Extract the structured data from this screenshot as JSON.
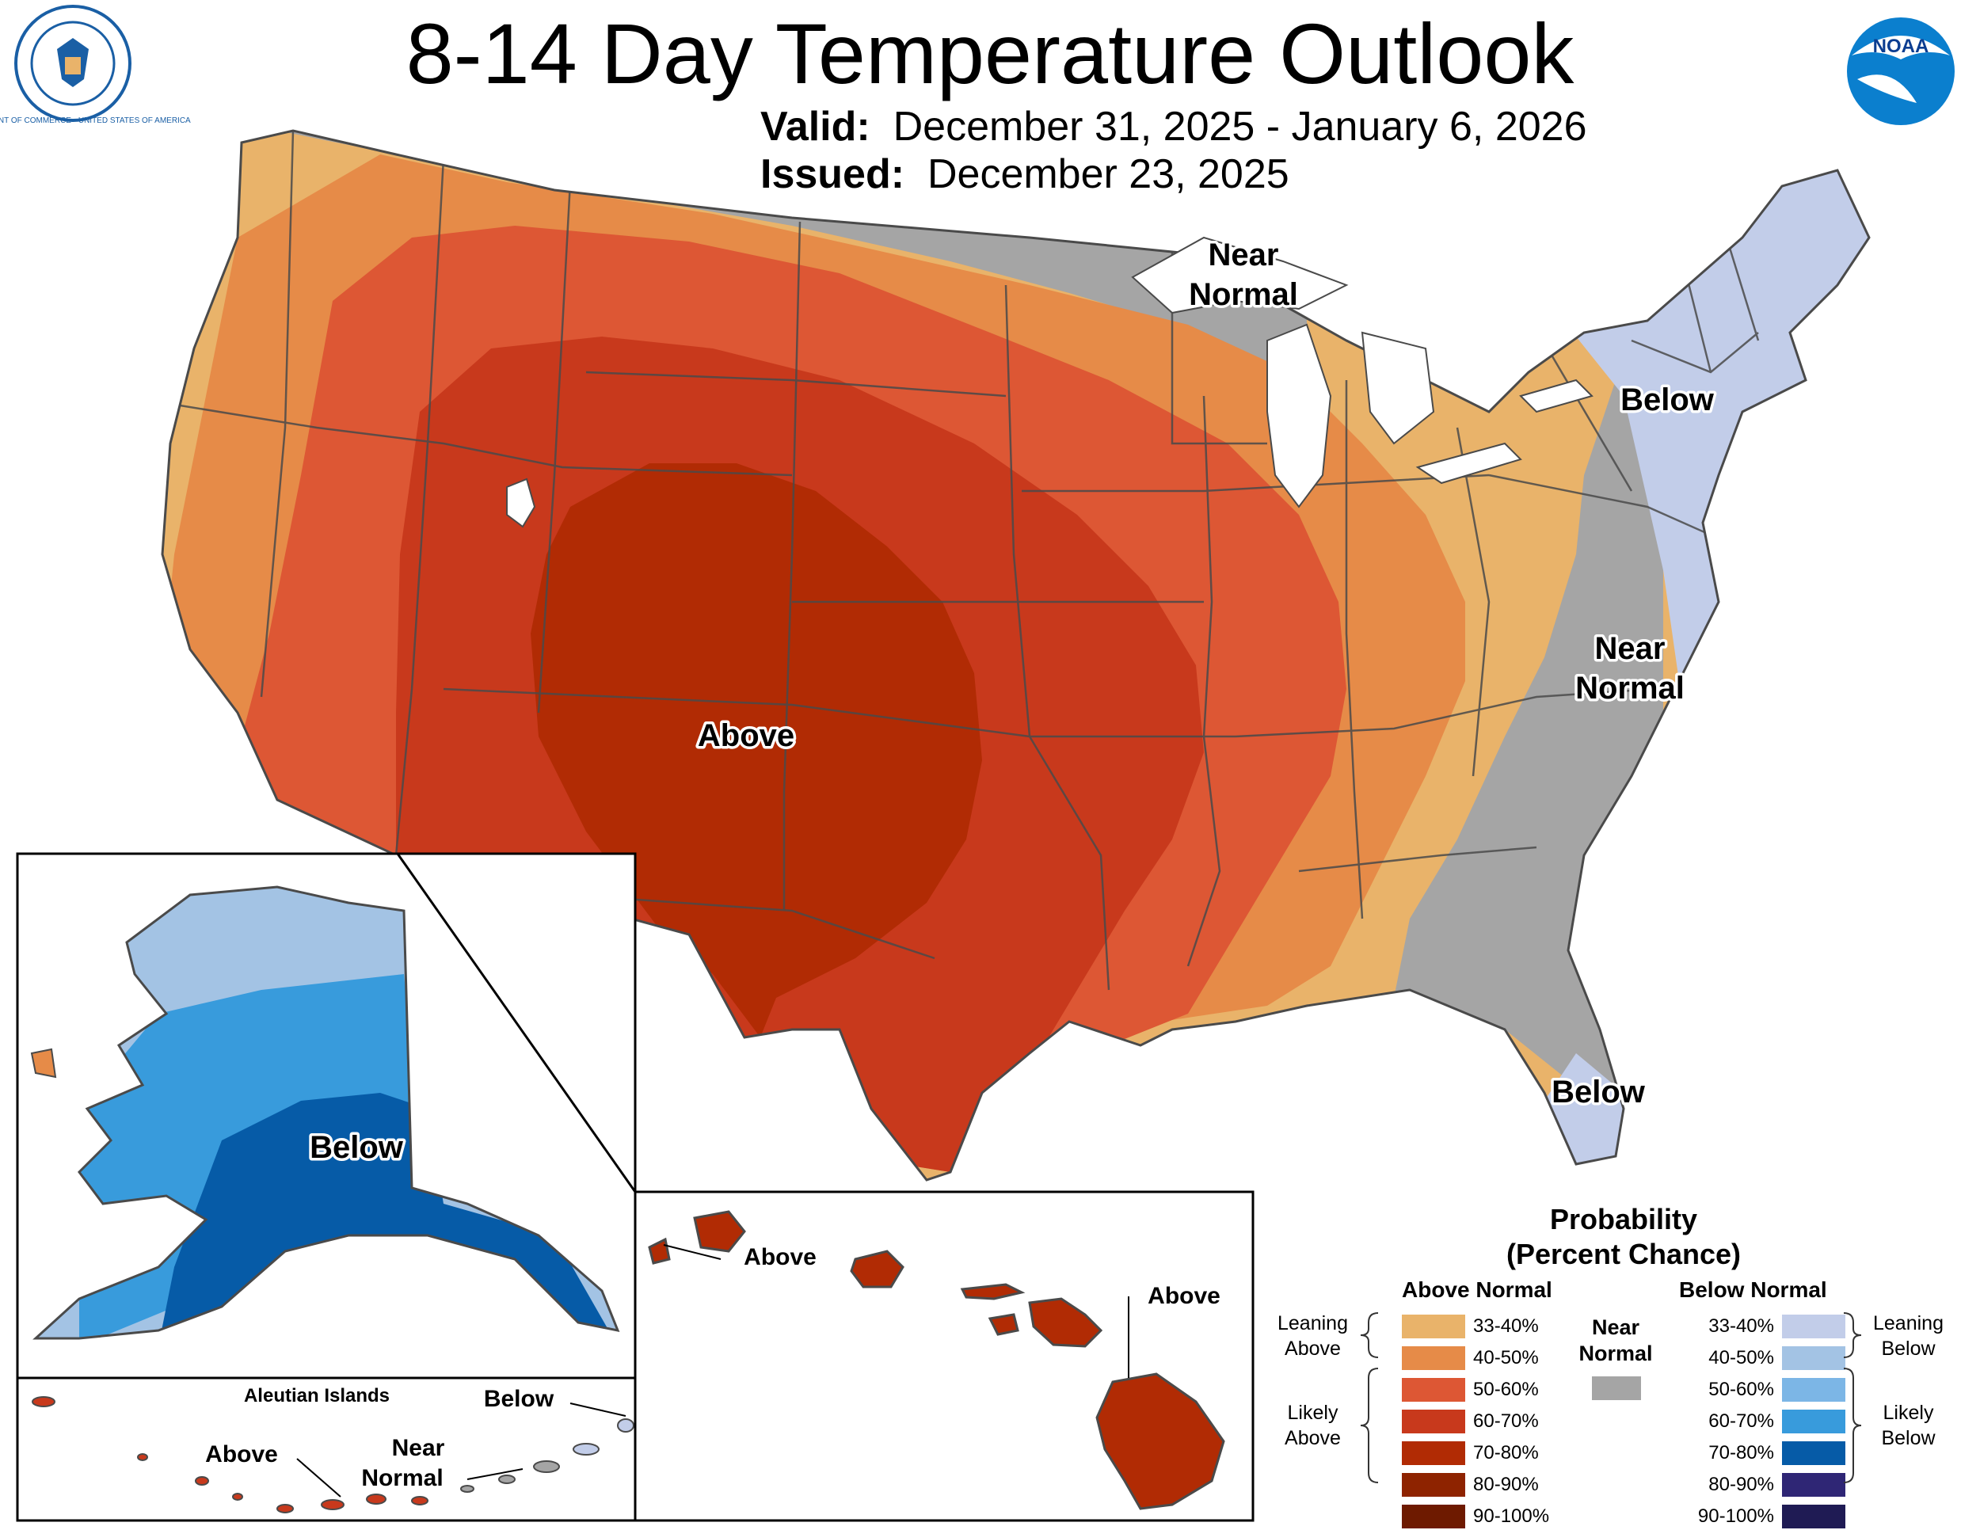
{
  "title": "8-14 Day Temperature Outlook",
  "valid": {
    "label": "Valid:",
    "value": "December 31, 2025 - January 6, 2026"
  },
  "issued": {
    "label": "Issued:",
    "value": "December 23, 2025"
  },
  "logos": {
    "left": "Department of Commerce seal",
    "right": "NOAA logo",
    "left_text": "DEPARTMENT OF COMMERCE · UNITED STATES OF AMERICA",
    "right_text": "NOAA"
  },
  "map_labels": {
    "conus_near_normal_north": [
      "Near",
      "Normal"
    ],
    "conus_below_northeast": "Below",
    "conus_near_normal_east": [
      "Near",
      "Normal"
    ],
    "conus_above": "Above",
    "conus_below_florida": "Below",
    "alaska_below": "Below",
    "hawaii_above_kauai": "Above",
    "hawaii_above_big_island": "Above",
    "aleutian_title": "Aleutian Islands",
    "aleutian_below": "Below",
    "aleutian_above": "Above",
    "aleutian_near_normal": [
      "Near",
      "Normal"
    ]
  },
  "legend": {
    "title": [
      "Probability",
      "(Percent Chance)"
    ],
    "above_header": "Above Normal",
    "below_header": "Below Normal",
    "near_normal": [
      "Near",
      "Normal"
    ],
    "near_color": "#a5a5a5",
    "above": [
      {
        "label": "33-40%",
        "color": "#e9b36a"
      },
      {
        "label": "40-50%",
        "color": "#e68b48"
      },
      {
        "label": "50-60%",
        "color": "#dd5734"
      },
      {
        "label": "60-70%",
        "color": "#c8391c"
      },
      {
        "label": "70-80%",
        "color": "#b12b04"
      },
      {
        "label": "80-90%",
        "color": "#8e2300"
      },
      {
        "label": "90-100%",
        "color": "#6e1a00"
      }
    ],
    "below": [
      {
        "label": "33-40%",
        "color": "#c2cde9"
      },
      {
        "label": "40-50%",
        "color": "#a3c3e4"
      },
      {
        "label": "50-60%",
        "color": "#7cb6e6"
      },
      {
        "label": "60-70%",
        "color": "#389bdc"
      },
      {
        "label": "70-80%",
        "color": "#065ba7"
      },
      {
        "label": "80-90%",
        "color": "#2f2675"
      },
      {
        "label": "90-100%",
        "color": "#1f1b54"
      }
    ],
    "leaning_above": [
      "Leaning",
      "Above"
    ],
    "likely_above": [
      "Likely",
      "Above"
    ],
    "leaning_below": [
      "Leaning",
      "Below"
    ],
    "likely_below": [
      "Likely",
      "Below"
    ]
  }
}
